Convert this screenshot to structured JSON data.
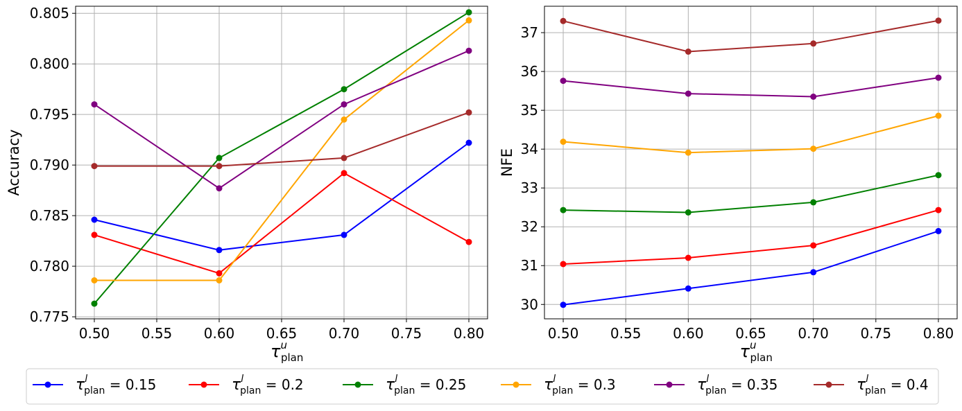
{
  "colors": {
    "blue": "#0000ff",
    "red": "#ff0000",
    "green": "#008000",
    "orange": "#ffa500",
    "purple": "#800080",
    "brown": "#a52a2a"
  },
  "legend": {
    "entries": [
      {
        "tau": "τ",
        "sup": "l",
        "sub": "plan",
        "eq": " = 0.15",
        "color": "#0000ff"
      },
      {
        "tau": "τ",
        "sup": "l",
        "sub": "plan",
        "eq": " = 0.2",
        "color": "#ff0000"
      },
      {
        "tau": "τ",
        "sup": "l",
        "sub": "plan",
        "eq": " = 0.25",
        "color": "#008000"
      },
      {
        "tau": "τ",
        "sup": "l",
        "sub": "plan",
        "eq": " = 0.3",
        "color": "#ffa500"
      },
      {
        "tau": "τ",
        "sup": "l",
        "sub": "plan",
        "eq": " = 0.35",
        "color": "#800080"
      },
      {
        "tau": "τ",
        "sup": "l",
        "sub": "plan",
        "eq": " = 0.4",
        "color": "#a52a2a"
      }
    ]
  },
  "chart_data": [
    {
      "type": "line",
      "title": "",
      "xlabel": {
        "main": "τ",
        "sup": "u",
        "sub": "plan"
      },
      "ylabel": "Accuracy",
      "x": [
        0.5,
        0.6,
        0.7,
        0.8
      ],
      "xlim": [
        0.485,
        0.815
      ],
      "ylim": [
        0.7748,
        0.8057
      ],
      "xticks": [
        "0.50",
        "0.55",
        "0.60",
        "0.65",
        "0.70",
        "0.75",
        "0.80"
      ],
      "xtick_values": [
        0.5,
        0.55,
        0.6,
        0.65,
        0.7,
        0.75,
        0.8
      ],
      "yticks": [
        "0.775",
        "0.780",
        "0.785",
        "0.790",
        "0.795",
        "0.800",
        "0.805"
      ],
      "ytick_values": [
        0.775,
        0.78,
        0.785,
        0.79,
        0.795,
        0.8,
        0.805
      ],
      "grid": true,
      "series": [
        {
          "name": "τ_plan^l = 0.15",
          "color": "#0000ff",
          "values": [
            0.7846,
            0.7816,
            0.7831,
            0.7922
          ]
        },
        {
          "name": "τ_plan^l = 0.2",
          "color": "#ff0000",
          "values": [
            0.7831,
            0.7793,
            0.7892,
            0.7824
          ]
        },
        {
          "name": "τ_plan^l = 0.25",
          "color": "#008000",
          "values": [
            0.7763,
            0.7907,
            0.7975,
            0.8051
          ]
        },
        {
          "name": "τ_plan^l = 0.3",
          "color": "#ffa500",
          "values": [
            0.7786,
            0.7786,
            0.7945,
            0.8043
          ]
        },
        {
          "name": "τ_plan^l = 0.35",
          "color": "#800080",
          "values": [
            0.796,
            0.7877,
            0.796,
            0.8013
          ]
        },
        {
          "name": "τ_plan^l = 0.4",
          "color": "#a52a2a",
          "values": [
            0.7899,
            0.7899,
            0.7907,
            0.7952
          ]
        }
      ]
    },
    {
      "type": "line",
      "title": "",
      "xlabel": {
        "main": "τ",
        "sup": "u",
        "sub": "plan"
      },
      "ylabel": "NFE",
      "x": [
        0.5,
        0.6,
        0.7,
        0.8
      ],
      "xlim": [
        0.485,
        0.815
      ],
      "ylim": [
        29.63,
        37.68
      ],
      "xticks": [
        "0.50",
        "0.55",
        "0.60",
        "0.65",
        "0.70",
        "0.75",
        "0.80"
      ],
      "xtick_values": [
        0.5,
        0.55,
        0.6,
        0.65,
        0.7,
        0.75,
        0.8
      ],
      "yticks": [
        "30",
        "31",
        "32",
        "33",
        "34",
        "35",
        "36",
        "37"
      ],
      "ytick_values": [
        30,
        31,
        32,
        33,
        34,
        35,
        36,
        37
      ],
      "grid": true,
      "series": [
        {
          "name": "τ_plan^l = 0.15",
          "color": "#0000ff",
          "values": [
            29.99,
            30.41,
            30.83,
            31.89
          ]
        },
        {
          "name": "τ_plan^l = 0.2",
          "color": "#ff0000",
          "values": [
            31.04,
            31.2,
            31.52,
            32.43
          ]
        },
        {
          "name": "τ_plan^l = 0.25",
          "color": "#008000",
          "values": [
            32.43,
            32.37,
            32.63,
            33.33
          ]
        },
        {
          "name": "τ_plan^l = 0.3",
          "color": "#ffa500",
          "values": [
            34.19,
            33.91,
            34.01,
            34.86
          ]
        },
        {
          "name": "τ_plan^l = 0.35",
          "color": "#800080",
          "values": [
            35.76,
            35.43,
            35.35,
            35.84
          ]
        },
        {
          "name": "τ_plan^l = 0.4",
          "color": "#a52a2a",
          "values": [
            37.3,
            36.51,
            36.72,
            37.31
          ]
        }
      ]
    }
  ]
}
